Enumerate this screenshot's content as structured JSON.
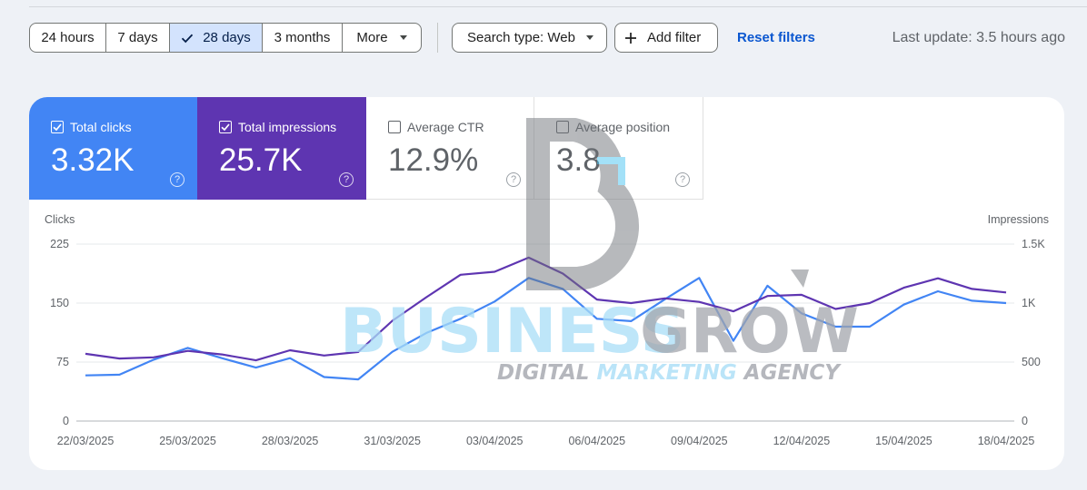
{
  "filters": {
    "ranges": [
      {
        "label": "24 hours",
        "selected": false
      },
      {
        "label": "7 days",
        "selected": false
      },
      {
        "label": "28 days",
        "selected": true
      },
      {
        "label": "3 months",
        "selected": false
      },
      {
        "label": "More",
        "selected": false
      }
    ],
    "search_type": "Search type: Web",
    "add_filter": "Add filter",
    "reset": "Reset filters",
    "last_update": "Last update: 3.5 hours ago"
  },
  "metrics": [
    {
      "label": "Total clicks",
      "value": "3.32K",
      "checked": true,
      "color": "#4285f4"
    },
    {
      "label": "Total impressions",
      "value": "25.7K",
      "checked": true,
      "color": "#5e35b1"
    },
    {
      "label": "Average CTR",
      "value": "12.9%",
      "checked": false
    },
    {
      "label": "Average position",
      "value": "3.8",
      "checked": false
    }
  ],
  "help_glyph": "?",
  "chart_data": {
    "type": "line",
    "left_axis_label": "Clicks",
    "right_axis_label": "Impressions",
    "left_ticks": [
      "225",
      "150",
      "75",
      "0"
    ],
    "right_ticks": [
      "1.5K",
      "1K",
      "500",
      "0"
    ],
    "left_ylim": [
      0,
      225
    ],
    "right_ylim": [
      0,
      1500
    ],
    "x_tick_labels": [
      "22/03/2025",
      "25/03/2025",
      "28/03/2025",
      "31/03/2025",
      "03/04/2025",
      "06/04/2025",
      "09/04/2025",
      "12/04/2025",
      "15/04/2025",
      "18/04/2025"
    ],
    "x_dates": [
      "22/03",
      "23/03",
      "24/03",
      "25/03",
      "26/03",
      "27/03",
      "28/03",
      "29/03",
      "30/03",
      "31/03",
      "01/04",
      "02/04",
      "03/04",
      "04/04",
      "05/04",
      "06/04",
      "07/04",
      "08/04",
      "09/04",
      "10/04",
      "11/04",
      "12/04",
      "13/04",
      "14/04",
      "15/04",
      "16/04",
      "17/04",
      "18/04"
    ],
    "series": [
      {
        "name": "Clicks",
        "axis": "left",
        "color": "#4285f4",
        "values": [
          58,
          59,
          78,
          93,
          80,
          68,
          80,
          56,
          53,
          88,
          112,
          130,
          152,
          182,
          168,
          130,
          127,
          155,
          182,
          102,
          172,
          137,
          120,
          120,
          148,
          165,
          153,
          150
        ]
      },
      {
        "name": "Impressions",
        "axis": "right",
        "color": "#5e35b1",
        "values": [
          570,
          530,
          540,
          595,
          565,
          515,
          600,
          555,
          585,
          850,
          1050,
          1240,
          1265,
          1385,
          1250,
          1030,
          1000,
          1040,
          1010,
          930,
          1060,
          1070,
          950,
          1000,
          1130,
          1210,
          1120,
          1090
        ]
      }
    ],
    "grid": true
  },
  "watermark": {
    "line1a": "BUSINESS",
    "line1b": "GROW",
    "line2a": "DIGITAL ",
    "line2b": "MARKETING",
    "line2c": " AGENCY",
    "colors": {
      "light_blue": "#a9def7",
      "grey": "#a3a6ad"
    }
  }
}
